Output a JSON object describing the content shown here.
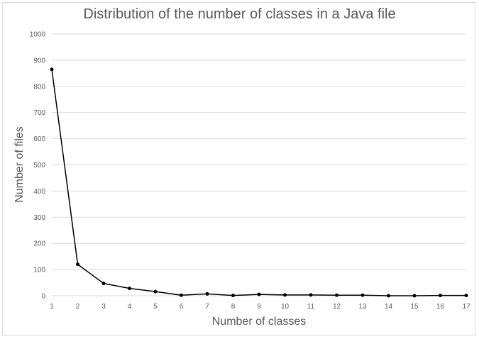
{
  "chart_data": {
    "type": "line",
    "title": "Distribution of the number of classes in a Java file",
    "xlabel": "Number of classes",
    "ylabel": "Number of files",
    "x": [
      1,
      2,
      3,
      4,
      5,
      6,
      7,
      8,
      9,
      10,
      11,
      12,
      13,
      14,
      15,
      16,
      17
    ],
    "series": [
      {
        "values": [
          865,
          120,
          47,
          28,
          16,
          2,
          7,
          1,
          5,
          3,
          3,
          2,
          2,
          0,
          0,
          1,
          1
        ]
      }
    ],
    "ylim": [
      0,
      1000
    ],
    "yticks": [
      0,
      100,
      200,
      300,
      400,
      500,
      600,
      700,
      800,
      900,
      1000
    ],
    "grid": "horizontal",
    "legend": "none",
    "colors": {
      "line": "#000000",
      "grid": "#d9d9d9",
      "text": "#595959"
    }
  }
}
